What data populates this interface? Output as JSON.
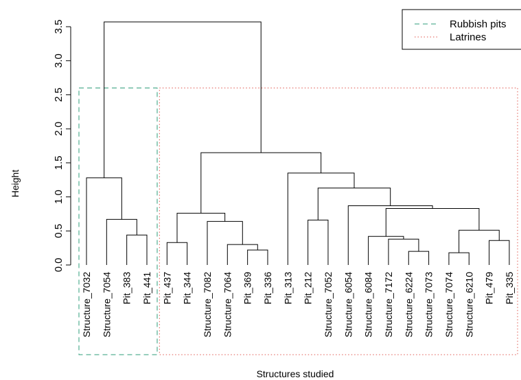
{
  "chart_data": {
    "type": "dendrogram",
    "title": "",
    "xlabel": "Structures studied",
    "ylabel": "Height",
    "ylim": [
      0,
      3.6
    ],
    "y_ticks": [
      "0.0",
      "0.5",
      "1.0",
      "1.5",
      "2.0",
      "2.5",
      "3.0",
      "3.5"
    ],
    "leaves": [
      "Structure_7032",
      "Structure_7054",
      "Pit_383",
      "Pit_441",
      "Pit_437",
      "Pit_344",
      "Structure_7082",
      "Structure_7064",
      "Pit_369",
      "Pit_336",
      "Pit_313",
      "Pit_212",
      "Structure_7052",
      "Structure_6054",
      "Structure_6084",
      "Structure_7172",
      "Structure_6224",
      "Structure_7073",
      "Structure_7074",
      "Structure_6210",
      "Pit_479",
      "Pit_335"
    ],
    "merges": [
      {
        "left": "L2",
        "right": "L3",
        "height": 0.44
      },
      {
        "left": "L1",
        "right": "M0",
        "height": 0.67
      },
      {
        "left": "L0",
        "right": "M1",
        "height": 1.28
      },
      {
        "left": "L4",
        "right": "L5",
        "height": 0.33
      },
      {
        "left": "L8",
        "right": "L9",
        "height": 0.22
      },
      {
        "left": "L7",
        "right": "M4",
        "height": 0.3
      },
      {
        "left": "L6",
        "right": "M5",
        "height": 0.64
      },
      {
        "left": "M3",
        "right": "M6",
        "height": 0.76
      },
      {
        "left": "L11",
        "right": "L12",
        "height": 0.66
      },
      {
        "left": "L16",
        "right": "L17",
        "height": 0.2
      },
      {
        "left": "L15",
        "right": "M9",
        "height": 0.38
      },
      {
        "left": "L14",
        "right": "M10",
        "height": 0.42
      },
      {
        "left": "L18",
        "right": "L19",
        "height": 0.18
      },
      {
        "left": "L20",
        "right": "L21",
        "height": 0.36
      },
      {
        "left": "M12",
        "right": "M13",
        "height": 0.51
      },
      {
        "left": "M11",
        "right": "M14",
        "height": 0.83
      },
      {
        "left": "L13",
        "right": "M15",
        "height": 0.87
      },
      {
        "left": "M8",
        "right": "M16",
        "height": 1.13
      },
      {
        "left": "L10",
        "right": "M17",
        "height": 1.35
      },
      {
        "left": "M7",
        "right": "M18",
        "height": 1.65
      },
      {
        "left": "M2",
        "right": "M19",
        "height": 3.57
      }
    ],
    "groups": [
      {
        "name": "Rubbish pits",
        "first_leaf": 0,
        "last_leaf": 3,
        "top": 2.6,
        "color": "#2e9d79",
        "style": "dashed"
      },
      {
        "name": "Latrines",
        "first_leaf": 4,
        "last_leaf": 21,
        "top": 2.6,
        "color": "#e0564e",
        "style": "dotted"
      }
    ],
    "legend": {
      "placement": "top-right",
      "entries": [
        {
          "label": "Rubbish pits",
          "color": "#2e9d79",
          "style": "dashed"
        },
        {
          "label": "Latrines",
          "color": "#e0564e",
          "style": "dotted"
        }
      ]
    }
  }
}
